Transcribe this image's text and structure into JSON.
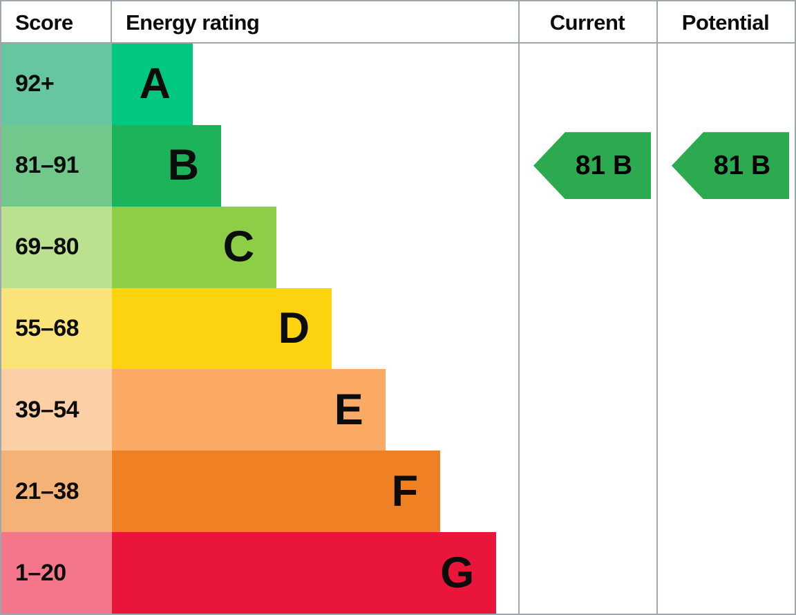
{
  "header": {
    "score": "Score",
    "energy_rating": "Energy rating",
    "current": "Current",
    "potential": "Potential"
  },
  "bands": [
    {
      "letter": "A",
      "score": "92+",
      "bar_color": "#00c881",
      "score_bg": "#65c6a0",
      "width_pct": 19.9
    },
    {
      "letter": "B",
      "score": "81–91",
      "bar_color": "#1db35a",
      "score_bg": "#72c88b",
      "width_pct": 26.9
    },
    {
      "letter": "C",
      "score": "69–80",
      "bar_color": "#8ece46",
      "score_bg": "#bae090",
      "width_pct": 40.5
    },
    {
      "letter": "D",
      "score": "55–68",
      "bar_color": "#fdd20e",
      "score_bg": "#fae378",
      "width_pct": 54.1
    },
    {
      "letter": "E",
      "score": "39–54",
      "bar_color": "#fbaa66",
      "score_bg": "#fccfa6",
      "width_pct": 67.3
    },
    {
      "letter": "F",
      "score": "21–38",
      "bar_color": "#ef8023",
      "score_bg": "#f5b277",
      "width_pct": 80.8
    },
    {
      "letter": "G",
      "score": "1–20",
      "bar_color": "#e9153b",
      "score_bg": "#f3768b",
      "width_pct": 94.6
    }
  ],
  "current": {
    "label": "81 B",
    "value": 81,
    "band": "B",
    "arrow_color": "#2baa50"
  },
  "potential": {
    "label": "81 B",
    "value": 81,
    "band": "B",
    "arrow_color": "#2baa50"
  },
  "colors": {
    "border": "#9fa5ac",
    "text": "#0b0c0c"
  },
  "chart_data": {
    "type": "bar",
    "orientation": "horizontal",
    "title": "Energy rating",
    "columns": [
      "Score",
      "Energy rating",
      "Current",
      "Potential"
    ],
    "categories": [
      "A",
      "B",
      "C",
      "D",
      "E",
      "F",
      "G"
    ],
    "score_ranges": [
      "92+",
      "81–91",
      "69–80",
      "55–68",
      "39–54",
      "21–38",
      "1–20"
    ],
    "relative_bar_lengths": [
      0.199,
      0.269,
      0.405,
      0.541,
      0.673,
      0.808,
      0.946
    ],
    "band_colors": [
      "#00c881",
      "#1db35a",
      "#8ece46",
      "#fdd20e",
      "#fbaa66",
      "#ef8023",
      "#e9153b"
    ],
    "legend_position": "none",
    "grid": false,
    "current": {
      "score": 81,
      "band": "B"
    },
    "potential": {
      "score": 81,
      "band": "B"
    }
  }
}
